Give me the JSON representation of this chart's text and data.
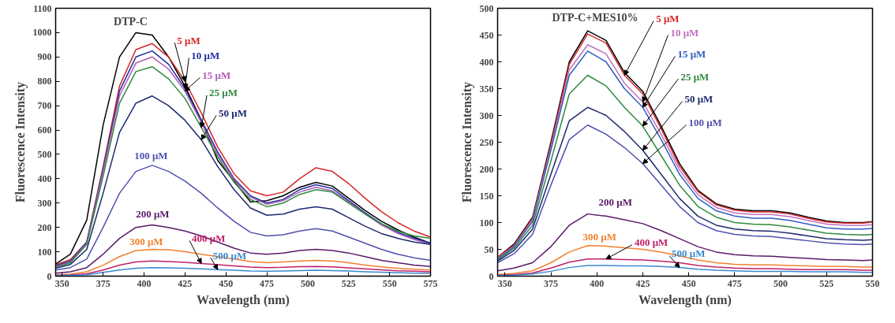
{
  "chart_data": [
    {
      "type": "line",
      "title": "DTP-C",
      "xlabel": "Wavelength (nm)",
      "ylabel": "Fluorescence Intensity",
      "xlim": [
        346,
        575
      ],
      "ylim": [
        0,
        1100
      ],
      "xticks": [
        350,
        375,
        400,
        425,
        450,
        475,
        500,
        525,
        550,
        575
      ],
      "yticks": [
        0,
        100,
        200,
        300,
        400,
        500,
        600,
        700,
        800,
        900,
        1000,
        1100
      ],
      "grid": false,
      "x": [
        346,
        355,
        365,
        375,
        385,
        395,
        405,
        415,
        425,
        435,
        445,
        455,
        465,
        475,
        485,
        495,
        505,
        515,
        525,
        535,
        545,
        555,
        565,
        575
      ],
      "series": [
        {
          "color": "#000000",
          "values": [
            50,
            90,
            230,
            620,
            900,
            1000,
            990,
            900,
            780,
            640,
            475,
            390,
            305,
            310,
            330,
            365,
            385,
            370,
            320,
            270,
            225,
            190,
            160,
            135
          ]
        },
        {
          "name": "5 μM",
          "color": "#d62728",
          "values": [
            46,
            68,
            140,
            450,
            780,
            930,
            955,
            900,
            800,
            670,
            530,
            420,
            350,
            330,
            345,
            400,
            445,
            430,
            380,
            320,
            265,
            220,
            185,
            160
          ]
        },
        {
          "name": "10 μM",
          "color": "#1f2f9f",
          "values": [
            42,
            62,
            140,
            440,
            760,
            900,
            925,
            870,
            770,
            640,
            510,
            400,
            330,
            300,
            315,
            355,
            375,
            360,
            310,
            260,
            215,
            180,
            155,
            135
          ]
        },
        {
          "name": "15 μM",
          "color": "#b05ab8",
          "values": [
            38,
            58,
            135,
            430,
            740,
            875,
            900,
            850,
            760,
            630,
            500,
            395,
            325,
            295,
            310,
            345,
            365,
            350,
            305,
            255,
            210,
            175,
            150,
            130
          ]
        },
        {
          "name": "25 μM",
          "color": "#2e8b3e",
          "values": [
            35,
            55,
            130,
            410,
            710,
            840,
            860,
            810,
            730,
            610,
            490,
            385,
            315,
            285,
            300,
            335,
            355,
            345,
            300,
            255,
            215,
            185,
            165,
            155
          ]
        },
        {
          "name": "50 μM",
          "color": "#1c2a6e",
          "values": [
            32,
            48,
            110,
            340,
            590,
            710,
            740,
            700,
            640,
            560,
            450,
            355,
            280,
            250,
            255,
            275,
            285,
            275,
            240,
            205,
            175,
            155,
            140,
            130
          ]
        },
        {
          "name": "100 μM",
          "color": "#5050b0",
          "values": [
            25,
            35,
            70,
            200,
            340,
            430,
            455,
            430,
            390,
            340,
            280,
            225,
            180,
            165,
            170,
            185,
            195,
            185,
            160,
            135,
            110,
            90,
            75,
            65
          ]
        },
        {
          "name": "200 μM",
          "color": "#5a1a6a",
          "values": [
            12,
            18,
            35,
            90,
            155,
            200,
            210,
            200,
            185,
            165,
            140,
            115,
            95,
            90,
            95,
            105,
            110,
            105,
            95,
            80,
            65,
            55,
            45,
            40
          ]
        },
        {
          "name": "300 μM",
          "color": "#f08030",
          "values": [
            5,
            8,
            18,
            45,
            80,
            105,
            110,
            108,
            100,
            90,
            80,
            70,
            60,
            55,
            58,
            62,
            65,
            62,
            55,
            45,
            38,
            32,
            28,
            25
          ]
        },
        {
          "name": "400 μM",
          "color": "#c0206a",
          "values": [
            3,
            5,
            10,
            25,
            45,
            58,
            62,
            60,
            57,
            52,
            47,
            42,
            37,
            35,
            36,
            39,
            40,
            38,
            34,
            30,
            26,
            22,
            20,
            18
          ]
        },
        {
          "name": "500 μM",
          "color": "#3a8ad0",
          "values": [
            2,
            3,
            6,
            15,
            25,
            32,
            35,
            34,
            32,
            30,
            27,
            24,
            21,
            20,
            21,
            23,
            24,
            23,
            21,
            18,
            16,
            14,
            12,
            11
          ]
        }
      ]
    },
    {
      "type": "line",
      "title": "DTP-C+MES10%",
      "xlabel": "Wavelength (nm)",
      "ylabel": "Fluorescence Intensity",
      "xlim": [
        346,
        550
      ],
      "ylim": [
        0,
        500
      ],
      "xticks": [
        350,
        375,
        400,
        425,
        450,
        475,
        500,
        525,
        550
      ],
      "yticks": [
        0,
        50,
        100,
        150,
        200,
        250,
        300,
        350,
        400,
        450,
        500
      ],
      "grid": false,
      "x": [
        346,
        355,
        365,
        375,
        385,
        395,
        405,
        415,
        425,
        435,
        445,
        455,
        465,
        475,
        485,
        495,
        505,
        515,
        525,
        535,
        545,
        550
      ],
      "series": [
        {
          "color": "#000000",
          "values": [
            35,
            60,
            110,
            250,
            400,
            458,
            440,
            380,
            345,
            280,
            210,
            160,
            135,
            125,
            122,
            122,
            118,
            110,
            103,
            100,
            100,
            102
          ]
        },
        {
          "name": "5 μM",
          "color": "#d62728",
          "values": [
            35,
            58,
            108,
            245,
            395,
            452,
            435,
            375,
            340,
            275,
            205,
            158,
            133,
            123,
            120,
            120,
            116,
            108,
            101,
            99,
            99,
            101
          ]
        },
        {
          "name": "10 μM",
          "color": "#c070c0",
          "values": [
            33,
            56,
            105,
            240,
            385,
            432,
            415,
            360,
            325,
            265,
            198,
            152,
            128,
            118,
            115,
            115,
            111,
            104,
            97,
            95,
            95,
            96
          ]
        },
        {
          "name": "15 μM",
          "color": "#2f5fbf",
          "values": [
            32,
            55,
            102,
            235,
            375,
            420,
            400,
            350,
            315,
            255,
            190,
            145,
            122,
            112,
            108,
            108,
            104,
            97,
            90,
            88,
            88,
            89
          ]
        },
        {
          "name": "25 μM",
          "color": "#2e8b3e",
          "values": [
            30,
            52,
            95,
            215,
            340,
            375,
            355,
            315,
            280,
            225,
            170,
            130,
            110,
            100,
            97,
            96,
            92,
            86,
            80,
            78,
            77,
            78
          ]
        },
        {
          "name": "50 μM",
          "color": "#1c2a6e",
          "values": [
            28,
            48,
            88,
            190,
            290,
            315,
            300,
            270,
            235,
            190,
            145,
            112,
            95,
            88,
            85,
            84,
            80,
            75,
            70,
            68,
            67,
            68
          ]
        },
        {
          "name": "100 μM",
          "color": "#5050b0",
          "values": [
            25,
            42,
            78,
            170,
            255,
            282,
            265,
            240,
            210,
            170,
            130,
            100,
            85,
            78,
            75,
            74,
            70,
            66,
            62,
            60,
            59,
            60
          ]
        },
        {
          "name": "200 μM",
          "color": "#5a1a6a",
          "values": [
            10,
            15,
            25,
            55,
            95,
            116,
            112,
            105,
            98,
            85,
            70,
            55,
            45,
            40,
            38,
            37,
            35,
            33,
            31,
            30,
            29,
            30
          ]
        },
        {
          "name": "300 μM",
          "color": "#f08030",
          "values": [
            3,
            5,
            10,
            25,
            45,
            57,
            56,
            53,
            50,
            45,
            38,
            30,
            25,
            22,
            21,
            21,
            20,
            19,
            18,
            18,
            17,
            17
          ]
        },
        {
          "name": "400 μM",
          "color": "#c0206a",
          "values": [
            2,
            3,
            6,
            15,
            26,
            32,
            32,
            31,
            30,
            28,
            25,
            20,
            17,
            15,
            14,
            14,
            13,
            12,
            12,
            12,
            11,
            11
          ]
        },
        {
          "name": "500 μM",
          "color": "#3a8ad0",
          "values": [
            1,
            2,
            4,
            9,
            16,
            20,
            20,
            19,
            19,
            18,
            16,
            13,
            11,
            10,
            9,
            9,
            9,
            8,
            8,
            8,
            7,
            7
          ]
        }
      ]
    }
  ]
}
